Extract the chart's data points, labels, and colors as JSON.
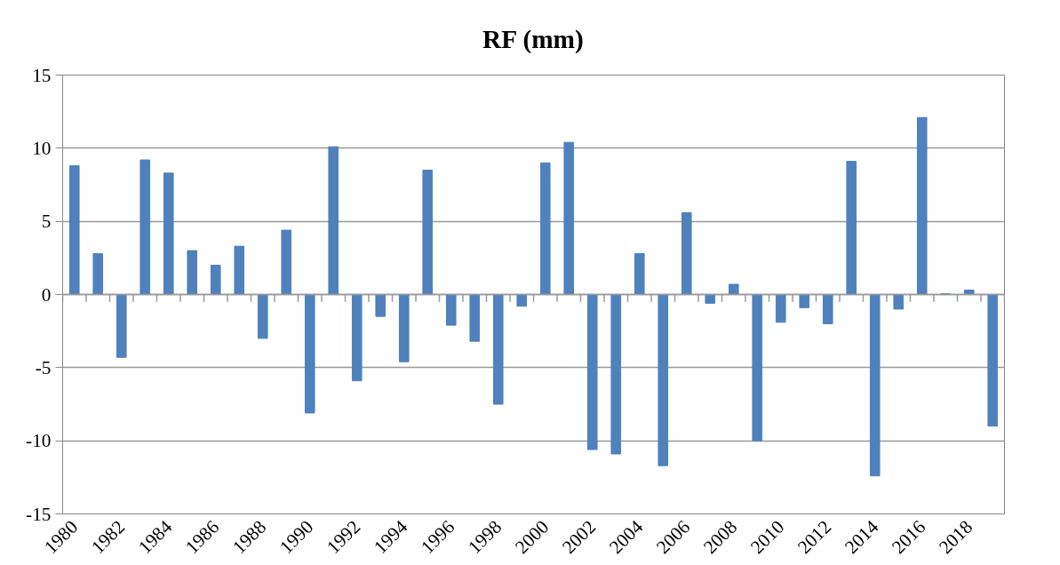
{
  "chart_data": {
    "type": "bar",
    "title": "RF (mm)",
    "categories": [
      "1980",
      null,
      "1982",
      null,
      "1984",
      null,
      "1986",
      null,
      "1988",
      null,
      "1990",
      null,
      "1992",
      null,
      "1994",
      null,
      "1996",
      null,
      "1998",
      null,
      "2000",
      null,
      "2002",
      null,
      "2004",
      null,
      "2006",
      null,
      "2008",
      null,
      "2010",
      null,
      "2012",
      null,
      "2014",
      null,
      "2016",
      null,
      "2018",
      null
    ],
    "values": [
      8.8,
      2.8,
      -4.3,
      9.2,
      8.3,
      3.0,
      2.0,
      3.3,
      -3.0,
      4.4,
      -8.1,
      10.1,
      -5.9,
      -1.5,
      -4.6,
      8.5,
      -2.1,
      -3.2,
      -7.5,
      -0.8,
      9.0,
      10.4,
      -10.6,
      -10.9,
      2.8,
      -11.7,
      5.6,
      -0.6,
      0.7,
      -10.0,
      -1.9,
      -0.9,
      -2.0,
      9.1,
      -12.4,
      -1.0,
      12.1,
      0.05,
      0.3,
      -9.0
    ],
    "color": "#4f81bd",
    "ylim": [
      -15,
      15
    ],
    "yticks": [
      -15,
      -10,
      -5,
      0,
      5,
      10,
      15
    ],
    "grid": "y"
  }
}
